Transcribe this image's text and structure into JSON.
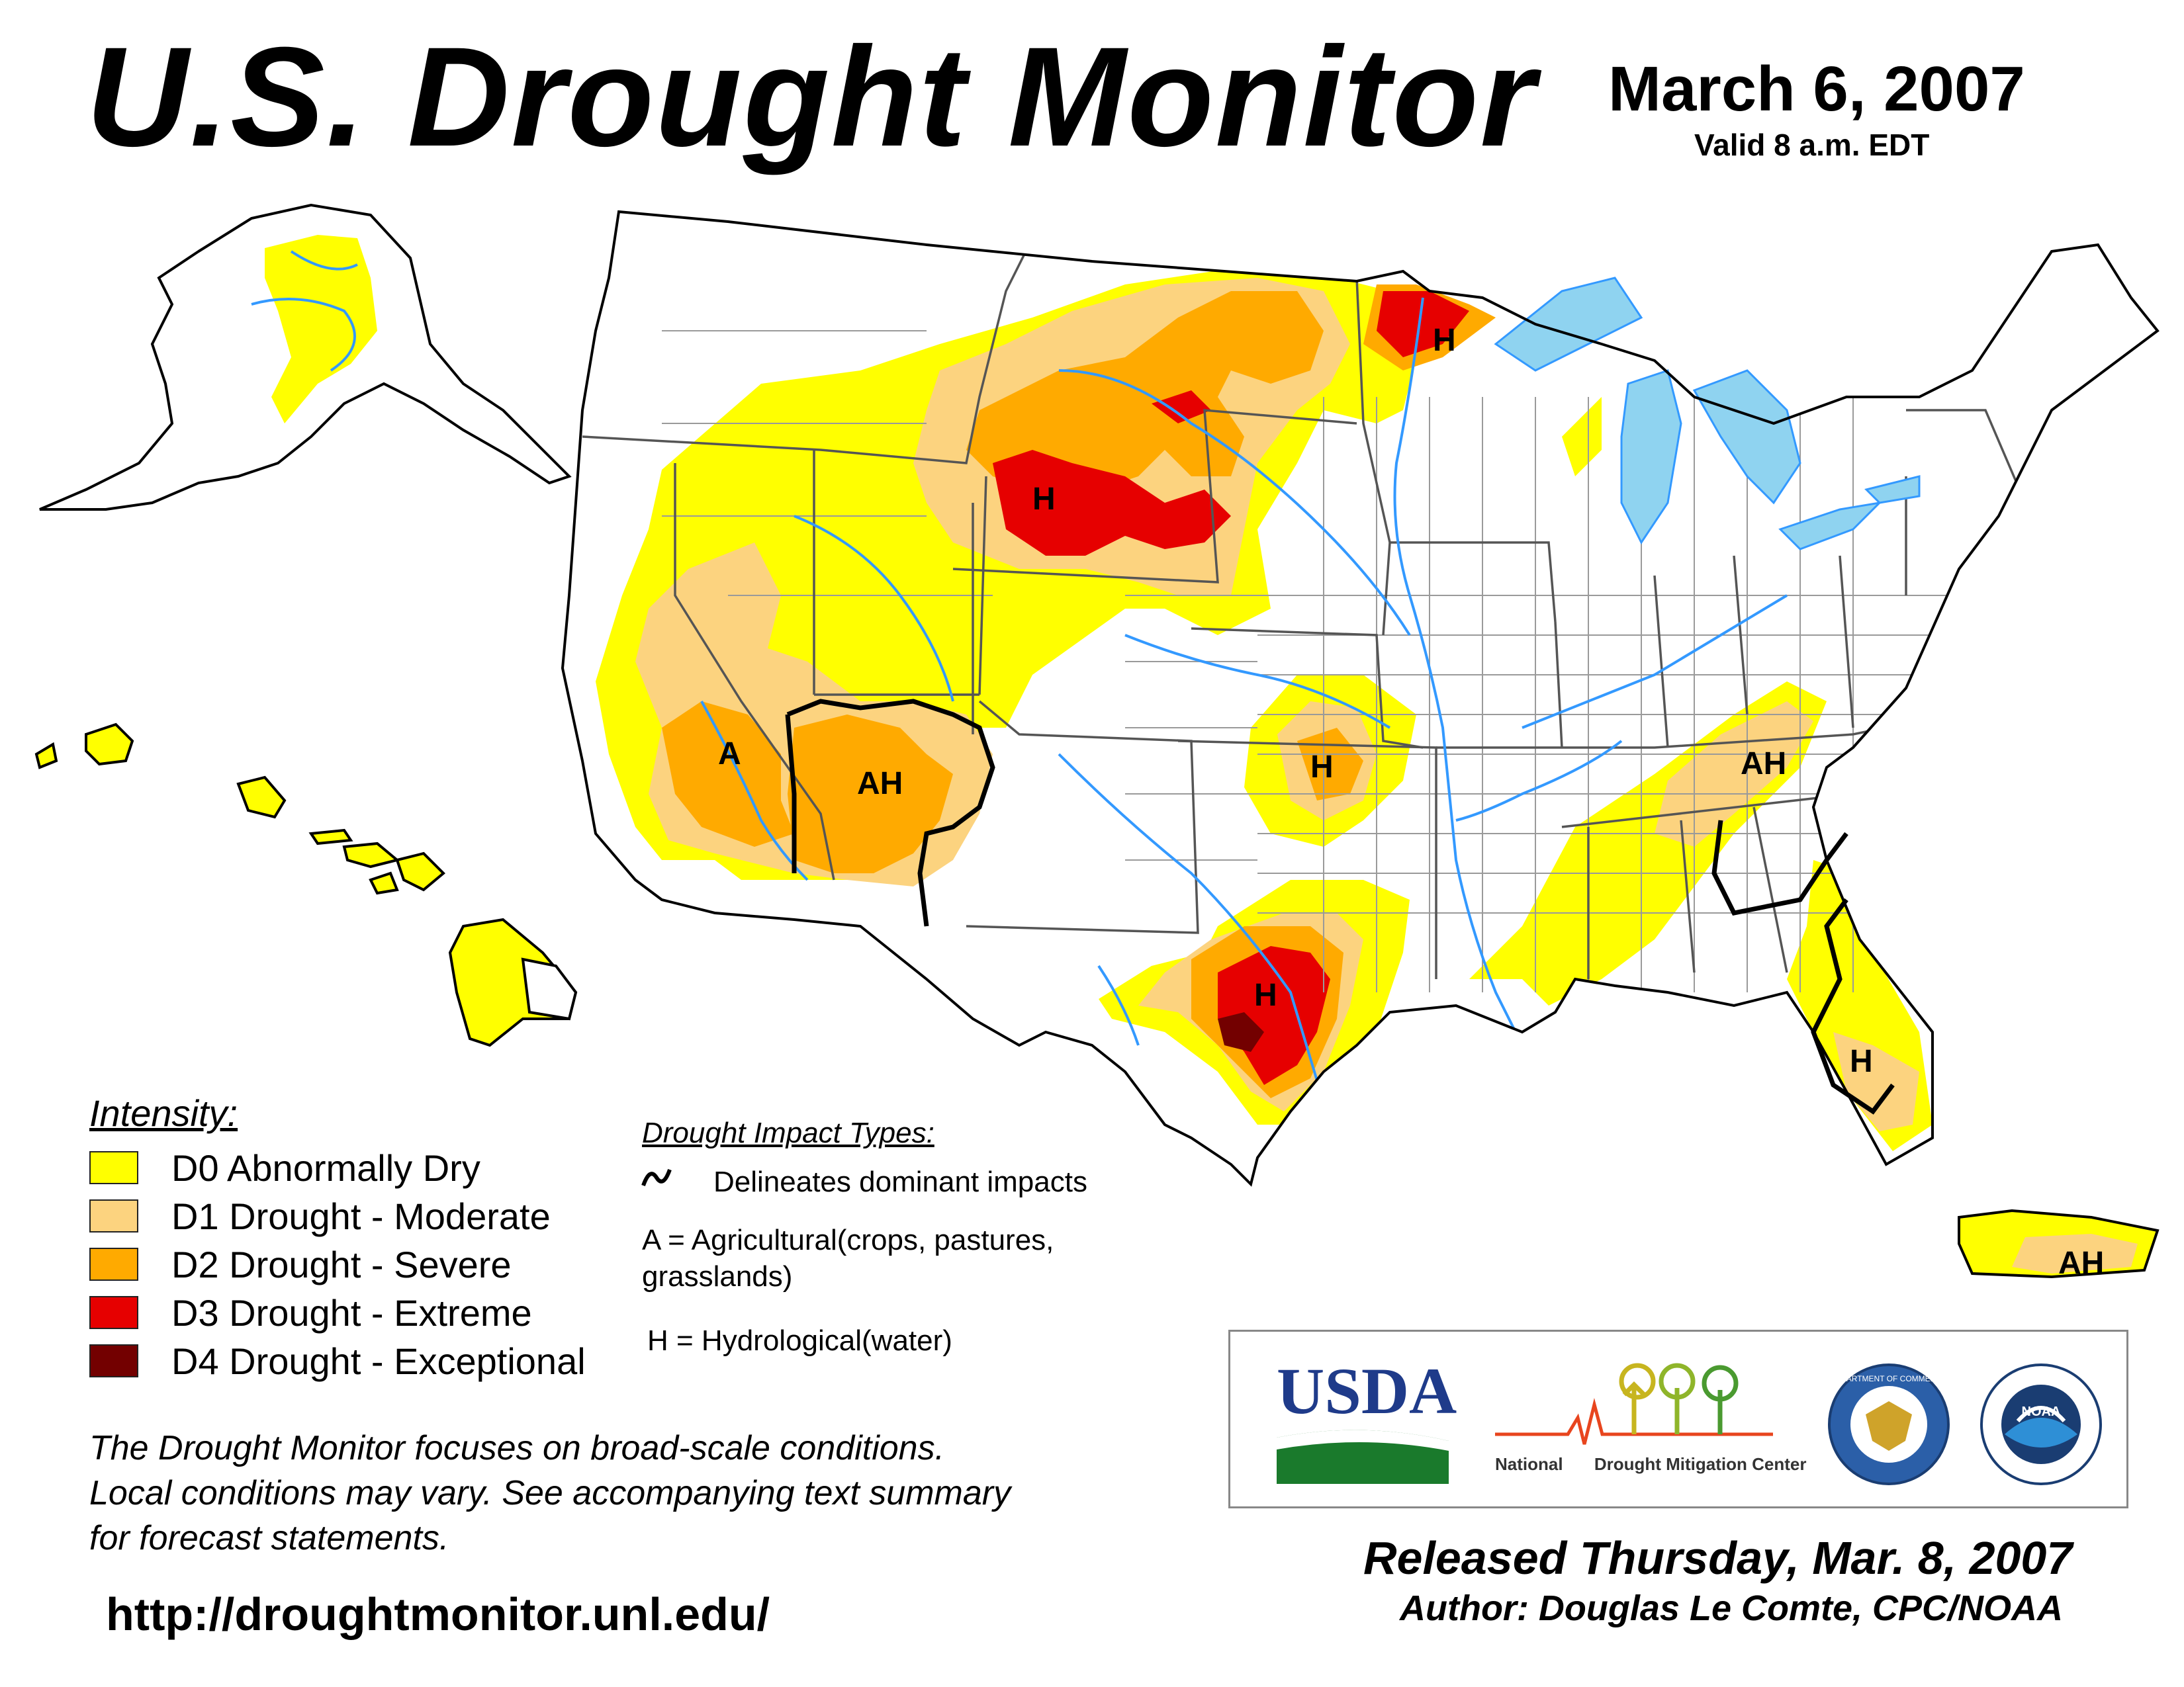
{
  "header": {
    "title": "U.S. Drought Monitor",
    "date": "March 6, 2007",
    "valid": "Valid 8 a.m. EDT"
  },
  "map": {
    "region_labels": {
      "montana_minnesota_h": "H",
      "minnesota_h": "H",
      "southern_california_a": "A",
      "arizona_nm_ah": "AH",
      "kansas_h": "H",
      "texas_h": "H",
      "carolina_ah": "AH",
      "florida_h": "H",
      "puerto_rico_ah": "AH"
    },
    "colors": {
      "d0": "#ffff00",
      "d1": "#fcd37f",
      "d2": "#ffaa00",
      "d3": "#e60000",
      "d4": "#730000",
      "water": "#8fd3f0",
      "river": "#3399ff",
      "state_line": "#555555",
      "county_line": "#9a9a9a"
    }
  },
  "legend": {
    "title": "Intensity:",
    "items": [
      {
        "label": "D0 Abnormally Dry",
        "color": "#ffff00"
      },
      {
        "label": "D1 Drought - Moderate",
        "color": "#fcd37f"
      },
      {
        "label": "D2 Drought - Severe",
        "color": "#ffaa00"
      },
      {
        "label": "D3 Drought - Extreme",
        "color": "#e60000"
      },
      {
        "label": "D4 Drought - Exceptional",
        "color": "#730000"
      }
    ]
  },
  "impacts": {
    "title": "Drought Impact Types:",
    "delineates": "Delineates dominant impacts",
    "agricultural_line1": "A = Agricultural(crops, pastures,",
    "agricultural_line2": "grasslands)",
    "hydrological": "H = Hydrological(water)"
  },
  "note": {
    "line1": "The Drought Monitor focuses on broad-scale conditions.",
    "line2": "Local conditions may vary. See accompanying text summary",
    "line3": "for forecast statements."
  },
  "url": "http://droughtmonitor.unl.edu/",
  "logos": {
    "usda": "USDA",
    "ndmc_part1": "National",
    "ndmc_part2": "Drought Mitigation Center",
    "commerce_seal": "DEPARTMENT OF COMMERCE",
    "noaa": "NOAA"
  },
  "footer": {
    "released": "Released Thursday, Mar. 8, 2007",
    "author": "Author: Douglas Le Comte, CPC/NOAA"
  }
}
